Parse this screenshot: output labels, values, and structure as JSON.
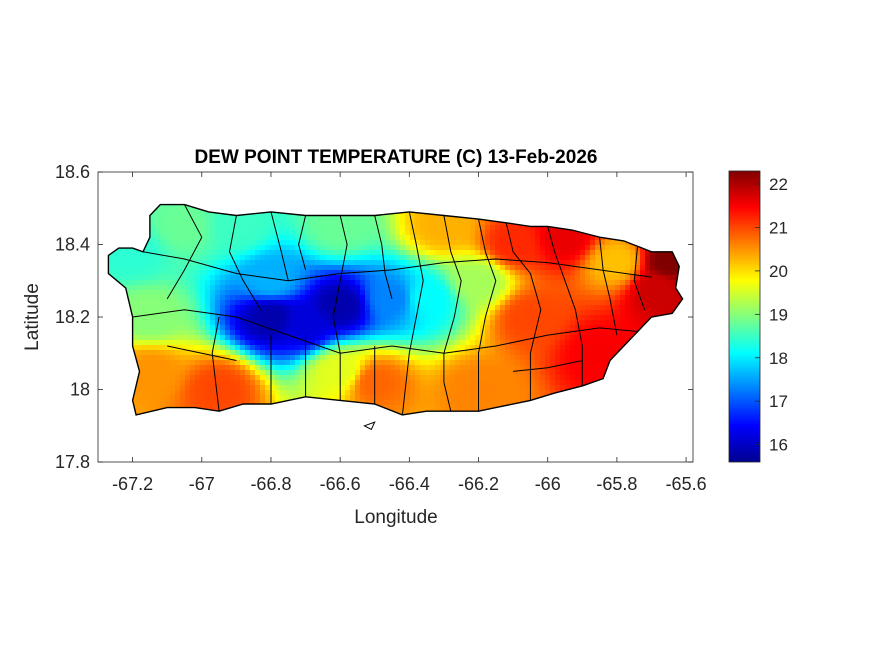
{
  "figure": {
    "title": "DEW POINT TEMPERATURE (C) 13-Feb-2026",
    "xlabel": "Longitude",
    "ylabel": "Latitude"
  },
  "chart_data": {
    "type": "heatmap",
    "title": "DEW POINT TEMPERATURE (C) 13-Feb-2026",
    "xlabel": "Longitude",
    "ylabel": "Latitude",
    "xlim": [
      -67.3,
      -65.58
    ],
    "ylim": [
      17.8,
      18.6
    ],
    "xticks": [
      -67.2,
      -67,
      -66.8,
      -66.6,
      -66.4,
      -66.2,
      -66,
      -65.8,
      -65.6
    ],
    "yticks": [
      17.8,
      18,
      18.2,
      18.4,
      18.6
    ],
    "xtick_labels": [
      "-67.2",
      "-67",
      "-66.8",
      "-66.6",
      "-66.4",
      "-66.2",
      "-66",
      "-65.8",
      "-65.6"
    ],
    "ytick_labels": [
      "17.8",
      "18",
      "18.2",
      "18.4",
      "18.6"
    ],
    "colormap": "jet",
    "colorbar": {
      "range": [
        15.6,
        22.3
      ],
      "ticks": [
        16,
        17,
        18,
        19,
        20,
        21,
        22
      ],
      "tick_labels": [
        "16",
        "17",
        "18",
        "19",
        "20",
        "21",
        "22"
      ],
      "placement": "right"
    },
    "field_anchors": [
      {
        "lon": -67.2,
        "lat": 18.38,
        "value": 18.4
      },
      {
        "lon": -67.05,
        "lat": 18.45,
        "value": 18.8
      },
      {
        "lon": -66.9,
        "lat": 18.45,
        "value": 18.5
      },
      {
        "lon": -66.8,
        "lat": 18.3,
        "value": 17.6
      },
      {
        "lon": -66.8,
        "lat": 18.2,
        "value": 15.9
      },
      {
        "lon": -66.6,
        "lat": 18.23,
        "value": 15.9
      },
      {
        "lon": -66.7,
        "lat": 18.18,
        "value": 16.2
      },
      {
        "lon": -66.45,
        "lat": 18.25,
        "value": 17.3
      },
      {
        "lon": -66.35,
        "lat": 18.25,
        "value": 18.1
      },
      {
        "lon": -66.2,
        "lat": 18.3,
        "value": 19.2
      },
      {
        "lon": -66.6,
        "lat": 18.45,
        "value": 18.8
      },
      {
        "lon": -66.3,
        "lat": 18.45,
        "value": 20.3
      },
      {
        "lon": -66.1,
        "lat": 18.4,
        "value": 21.2
      },
      {
        "lon": -65.95,
        "lat": 18.42,
        "value": 21.6
      },
      {
        "lon": -65.8,
        "lat": 18.35,
        "value": 20.2
      },
      {
        "lon": -65.65,
        "lat": 18.35,
        "value": 22.3
      },
      {
        "lon": -65.68,
        "lat": 18.28,
        "value": 21.8
      },
      {
        "lon": -65.85,
        "lat": 18.1,
        "value": 21.5
      },
      {
        "lon": -66.05,
        "lat": 18.2,
        "value": 21.0
      },
      {
        "lon": -66.2,
        "lat": 18.0,
        "value": 20.6
      },
      {
        "lon": -66.5,
        "lat": 18.02,
        "value": 20.8
      },
      {
        "lon": -66.6,
        "lat": 18.05,
        "value": 19.6
      },
      {
        "lon": -66.95,
        "lat": 18.0,
        "value": 21.0
      },
      {
        "lon": -67.15,
        "lat": 18.05,
        "value": 20.5
      },
      {
        "lon": -67.15,
        "lat": 18.2,
        "value": 19.0
      }
    ]
  }
}
